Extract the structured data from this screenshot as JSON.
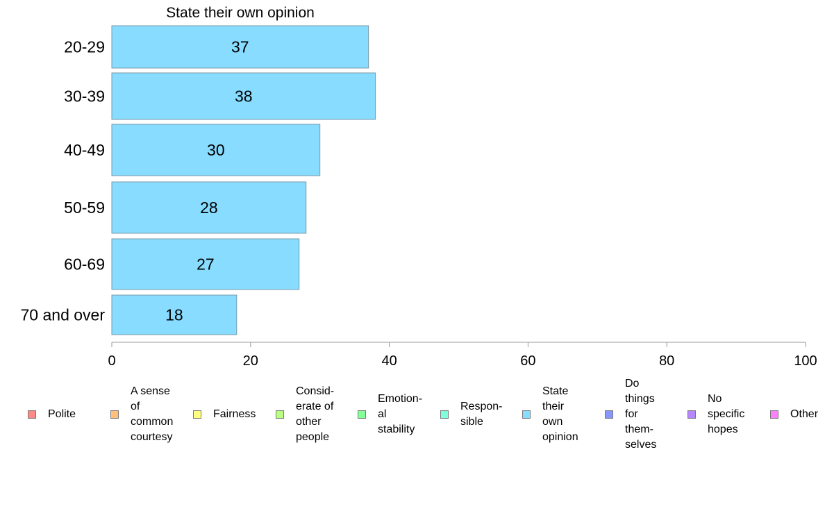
{
  "chart_data": {
    "type": "bar",
    "orientation": "horizontal",
    "title": "State their own opinion",
    "categories": [
      "20-29",
      "30-39",
      "40-49",
      "50-59",
      "60-69",
      "70 and over"
    ],
    "series": [
      {
        "name": "State their own opinion",
        "values": [
          37,
          38,
          30,
          28,
          27,
          18
        ],
        "color": "#87dcff"
      }
    ],
    "data_labels": [
      "37",
      "38",
      "30",
      "28",
      "27",
      "18"
    ],
    "xlim": [
      0,
      100
    ],
    "xticks": [
      0,
      20,
      40,
      60,
      80,
      100
    ],
    "xtick_labels": [
      "0",
      "20",
      "40",
      "60",
      "80",
      "100"
    ],
    "grid": false,
    "legend_position": "bottom",
    "legend": [
      {
        "label": "Polite",
        "color": "#ff8a85"
      },
      {
        "label": "A sense\nof\ncommon\ncourtesy",
        "color": "#ffc07d"
      },
      {
        "label": "Fairness",
        "color": "#ffff80"
      },
      {
        "label": "Consid-\nerate of\nother\npeople",
        "color": "#baff80"
      },
      {
        "label": "Emotion-\nal\nstability",
        "color": "#85ff98"
      },
      {
        "label": "Respon-\nsible",
        "color": "#80ffdd"
      },
      {
        "label": "State\ntheir\nown\nopinion",
        "color": "#87dcff"
      },
      {
        "label": "Do\nthings\nfor\nthem-\nselves",
        "color": "#8897ff"
      },
      {
        "label": "No\nspecific\nhopes",
        "color": "#b787ff"
      },
      {
        "label": "Other",
        "color": "#ff80ff"
      }
    ]
  }
}
